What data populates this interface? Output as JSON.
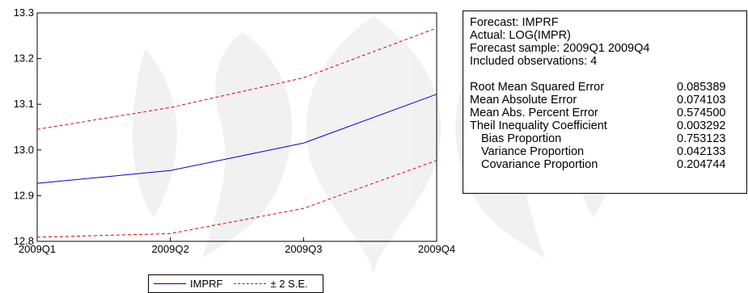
{
  "chart_data": {
    "type": "line",
    "categories": [
      "2009Q1",
      "2009Q2",
      "2009Q3",
      "2009Q4"
    ],
    "series": [
      {
        "name": "IMPRF",
        "values": [
          12.927,
          12.955,
          13.015,
          13.122
        ],
        "color": "#0000cc",
        "dash": "solid"
      },
      {
        "name": "± 2 S.E.",
        "values": [
          13.045,
          13.093,
          13.158,
          13.267
        ],
        "color": "#dd0000",
        "dash": "dashed"
      },
      {
        "name": "± 2 S.E.",
        "values": [
          12.809,
          12.817,
          12.872,
          12.977
        ],
        "color": "#dd0000",
        "dash": "dashed"
      }
    ],
    "ylim": [
      12.8,
      13.3
    ],
    "yticks": [
      "12.8",
      "12.9",
      "13.0",
      "13.1",
      "13.2",
      "13.3"
    ],
    "grid": false,
    "legend_position": "bottom"
  },
  "legend": [
    {
      "label": "IMPRF",
      "color": "#0000cc",
      "dash": "solid"
    },
    {
      "label": "± 2 S.E.",
      "color": "#dd0000",
      "dash": "dashed"
    }
  ],
  "stats": {
    "header": [
      "Forecast: IMPRF",
      "Actual: LOG(IMPR)",
      "Forecast sample: 2009Q1 2009Q4",
      "Included observations: 4"
    ],
    "rows": [
      {
        "label": "Root Mean Squared Error",
        "value": "0.085389",
        "indent": false
      },
      {
        "label": "Mean Absolute Error",
        "value": "0.074103",
        "indent": false
      },
      {
        "label": "Mean Abs. Percent Error",
        "value": "0.574500",
        "indent": false
      },
      {
        "label": "Theil Inequality Coefficient",
        "value": "0.003292",
        "indent": false
      },
      {
        "label": "Bias Proportion",
        "value": "0.753123",
        "indent": true
      },
      {
        "label": "Variance Proportion",
        "value": "0.042133",
        "indent": true
      },
      {
        "label": "Covariance Proportion",
        "value": "0.204744",
        "indent": true
      }
    ]
  }
}
